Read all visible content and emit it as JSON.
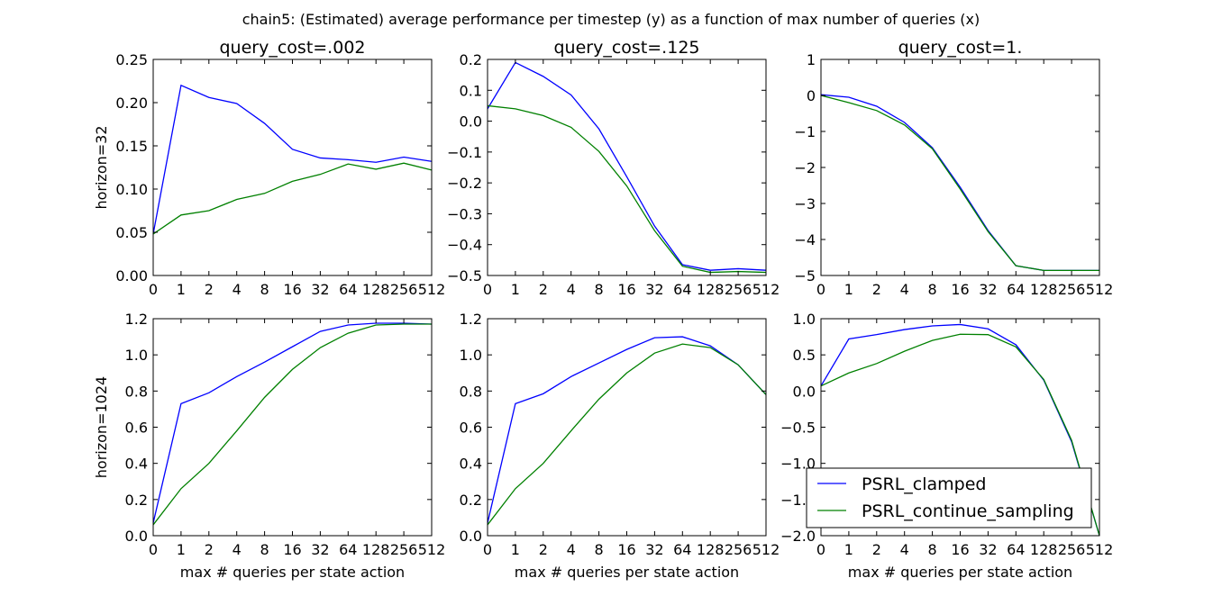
{
  "suptitle": "chain5: (Estimated) average performance per timestep (y) as a function of max number of queries (x)",
  "x_ticks": [
    "0",
    "1",
    "2",
    "4",
    "8",
    "16",
    "32",
    "64",
    "128",
    "256",
    "512"
  ],
  "column_titles": [
    "query_cost=.002",
    "query_cost=.125",
    "query_cost=1."
  ],
  "row_labels": [
    "horizon=32",
    "horizon=1024"
  ],
  "xlabel": "max # queries per state action",
  "legend": {
    "entries": [
      "PSRL_clamped",
      "PSRL_continue_sampling"
    ],
    "placement": "lower-right (bottom-right panel)"
  },
  "colors": {
    "PSRL_clamped": "#0000ff",
    "PSRL_continue_sampling": "#008000"
  },
  "chart_data": [
    {
      "type": "line",
      "title": "query_cost=.002",
      "ylabel": "horizon=32",
      "xlabel": "",
      "x": [
        "0",
        "1",
        "2",
        "4",
        "8",
        "16",
        "32",
        "64",
        "128",
        "256",
        "512"
      ],
      "ylim": [
        0.0,
        0.25
      ],
      "y_ticks": [
        "0.00",
        "0.05",
        "0.10",
        "0.15",
        "0.20",
        "0.25"
      ],
      "series": [
        {
          "name": "PSRL_clamped",
          "values": [
            0.048,
            0.22,
            0.206,
            0.199,
            0.176,
            0.146,
            0.136,
            0.134,
            0.131,
            0.137,
            0.132
          ]
        },
        {
          "name": "PSRL_continue_sampling",
          "values": [
            0.048,
            0.07,
            0.075,
            0.088,
            0.095,
            0.109,
            0.117,
            0.129,
            0.123,
            0.13,
            0.122
          ]
        }
      ]
    },
    {
      "type": "line",
      "title": "query_cost=.125",
      "ylabel": "",
      "xlabel": "",
      "x": [
        "0",
        "1",
        "2",
        "4",
        "8",
        "16",
        "32",
        "64",
        "128",
        "256",
        "512"
      ],
      "ylim": [
        -0.5,
        0.2
      ],
      "y_ticks": [
        "0.2",
        "0.1",
        "0.0",
        "−0.1",
        "−0.2",
        "−0.3",
        "−0.4",
        "−0.5"
      ],
      "series": [
        {
          "name": "PSRL_clamped",
          "values": [
            0.04,
            0.19,
            0.145,
            0.085,
            -0.025,
            -0.18,
            -0.34,
            -0.465,
            -0.483,
            -0.478,
            -0.483
          ]
        },
        {
          "name": "PSRL_continue_sampling",
          "values": [
            0.05,
            0.04,
            0.018,
            -0.02,
            -0.098,
            -0.21,
            -0.355,
            -0.47,
            -0.49,
            -0.487,
            -0.49
          ]
        }
      ]
    },
    {
      "type": "line",
      "title": "query_cost=1.",
      "ylabel": "",
      "xlabel": "",
      "x": [
        "0",
        "1",
        "2",
        "4",
        "8",
        "16",
        "32",
        "64",
        "128",
        "256",
        "512"
      ],
      "ylim": [
        -5,
        1
      ],
      "y_ticks": [
        "1",
        "0",
        "−1",
        "−2",
        "−3",
        "−4",
        "−5"
      ],
      "series": [
        {
          "name": "PSRL_clamped",
          "values": [
            0.02,
            -0.05,
            -0.3,
            -0.75,
            -1.45,
            -2.55,
            -3.75,
            -4.73,
            -4.86,
            -4.86,
            -4.86
          ]
        },
        {
          "name": "PSRL_continue_sampling",
          "values": [
            0.0,
            -0.2,
            -0.42,
            -0.82,
            -1.48,
            -2.6,
            -3.78,
            -4.73,
            -4.86,
            -4.86,
            -4.86
          ]
        }
      ]
    },
    {
      "type": "line",
      "title": "",
      "ylabel": "horizon=1024",
      "xlabel": "max # queries per state action",
      "x": [
        "0",
        "1",
        "2",
        "4",
        "8",
        "16",
        "32",
        "64",
        "128",
        "256",
        "512"
      ],
      "ylim": [
        0.0,
        1.2
      ],
      "y_ticks": [
        "0.0",
        "0.2",
        "0.4",
        "0.6",
        "0.8",
        "1.0",
        "1.2"
      ],
      "series": [
        {
          "name": "PSRL_clamped",
          "values": [
            0.07,
            0.73,
            0.79,
            0.88,
            0.96,
            1.045,
            1.13,
            1.165,
            1.175,
            1.175,
            1.17
          ]
        },
        {
          "name": "PSRL_continue_sampling",
          "values": [
            0.06,
            0.26,
            0.4,
            0.58,
            0.765,
            0.92,
            1.04,
            1.12,
            1.165,
            1.17,
            1.17
          ]
        }
      ]
    },
    {
      "type": "line",
      "title": "",
      "ylabel": "",
      "xlabel": "max # queries per state action",
      "x": [
        "0",
        "1",
        "2",
        "4",
        "8",
        "16",
        "32",
        "64",
        "128",
        "256",
        "512"
      ],
      "ylim": [
        0.0,
        1.2
      ],
      "y_ticks": [
        "0.0",
        "0.2",
        "0.4",
        "0.6",
        "0.8",
        "1.0",
        "1.2"
      ],
      "series": [
        {
          "name": "PSRL_clamped",
          "values": [
            0.07,
            0.73,
            0.785,
            0.88,
            0.955,
            1.03,
            1.095,
            1.1,
            1.05,
            0.945,
            0.78
          ]
        },
        {
          "name": "PSRL_continue_sampling",
          "values": [
            0.06,
            0.26,
            0.4,
            0.58,
            0.755,
            0.9,
            1.01,
            1.06,
            1.04,
            0.945,
            0.78
          ]
        }
      ]
    },
    {
      "type": "line",
      "title": "",
      "ylabel": "",
      "xlabel": "max # queries per state action",
      "x": [
        "0",
        "1",
        "2",
        "4",
        "8",
        "16",
        "32",
        "64",
        "128",
        "256",
        "512"
      ],
      "ylim": [
        -2.0,
        1.0
      ],
      "y_ticks": [
        "1.0",
        "0.5",
        "0.0",
        "−0.5",
        "−1.0",
        "−1.5",
        "−2.0"
      ],
      "series": [
        {
          "name": "PSRL_clamped",
          "values": [
            0.07,
            0.72,
            0.78,
            0.85,
            0.9,
            0.92,
            0.86,
            0.64,
            0.15,
            -0.7,
            -2.0
          ]
        },
        {
          "name": "PSRL_continue_sampling",
          "values": [
            0.07,
            0.25,
            0.38,
            0.55,
            0.7,
            0.785,
            0.78,
            0.61,
            0.16,
            -0.68,
            -2.0
          ]
        }
      ]
    }
  ]
}
